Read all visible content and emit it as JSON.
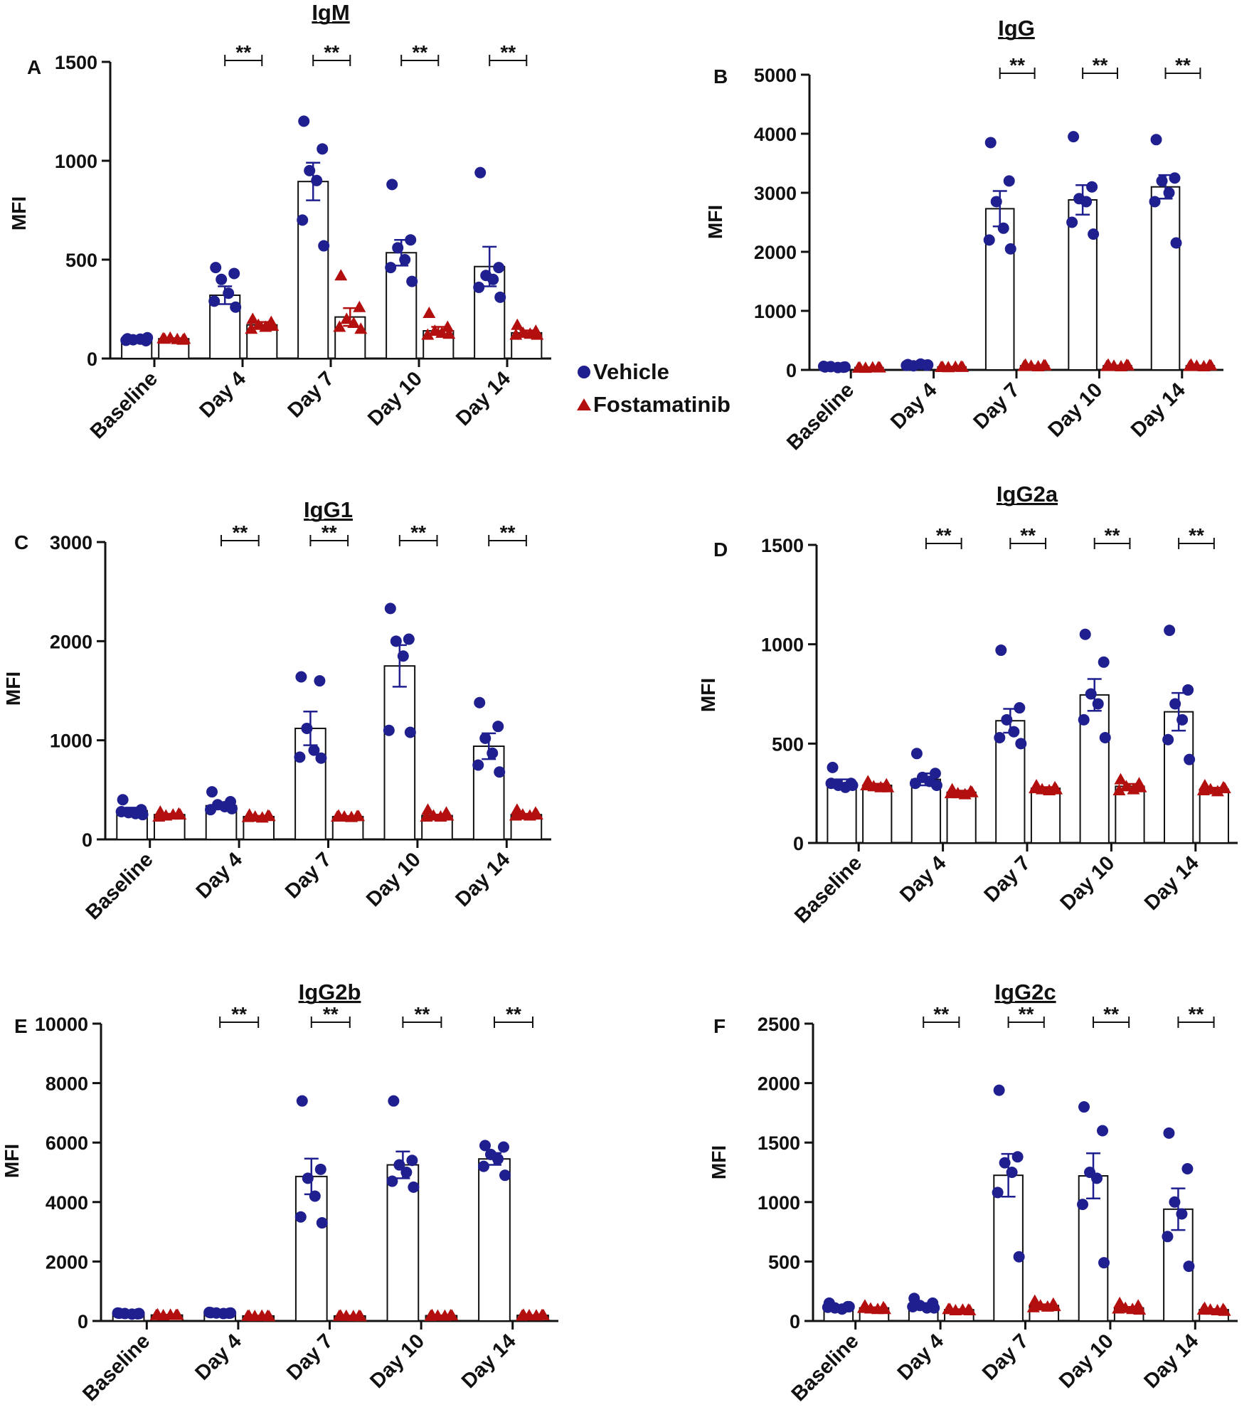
{
  "figure": {
    "legend": {
      "vehicle_label": "Vehicle",
      "fostamatinib_label": "Fostamatinib",
      "vehicle_color": "#1f1f8f",
      "fostamatinib_color": "#b30f0f"
    }
  },
  "chart_data": [
    {
      "panel": "A",
      "title": "IgM",
      "type": "bar",
      "ylabel": "MFI",
      "ylim": [
        0,
        1500
      ],
      "yticks": [
        0,
        500,
        1000,
        1500
      ],
      "categories": [
        "Baseline",
        "Day 4",
        "Day 7",
        "Day 10",
        "Day 14"
      ],
      "series": [
        {
          "name": "Vehicle",
          "means": [
            95,
            320,
            895,
            535,
            465
          ],
          "sem": [
            5,
            45,
            95,
            65,
            100
          ],
          "points": [
            [
              100,
              90,
              95,
              98,
              92,
              105
            ],
            [
              460,
              430,
              400,
              330,
              290,
              260
            ],
            [
              1200,
              1060,
              950,
              900,
              700,
              570
            ],
            [
              880,
              600,
              560,
              500,
              460,
              390
            ],
            [
              940,
              460,
              420,
              400,
              360,
              310
            ]
          ]
        },
        {
          "name": "Fostamatinib",
          "means": [
            100,
            170,
            210,
            140,
            130
          ],
          "sem": [
            3,
            15,
            45,
            20,
            12
          ],
          "points": [
            [
              100,
              95,
              105,
              98,
              102,
              100
            ],
            [
              200,
              185,
              170,
              160,
              150,
              165
            ],
            [
              420,
              260,
              200,
              180,
              160,
              150
            ],
            [
              230,
              160,
              140,
              130,
              120,
              125
            ],
            [
              170,
              140,
              130,
              125,
              120,
              120
            ]
          ]
        }
      ],
      "significance": [
        {
          "category": "Day 4",
          "label": "**"
        },
        {
          "category": "Day 7",
          "label": "**"
        },
        {
          "category": "Day 10",
          "label": "**"
        },
        {
          "category": "Day 14",
          "label": "**"
        }
      ]
    },
    {
      "panel": "B",
      "title": "IgG",
      "type": "bar",
      "ylabel": "MFI",
      "ylim": [
        0,
        5000
      ],
      "yticks": [
        0,
        1000,
        2000,
        3000,
        4000,
        5000
      ],
      "categories": [
        "Baseline",
        "Day 4",
        "Day 7",
        "Day 10",
        "Day 14"
      ],
      "series": [
        {
          "name": "Vehicle",
          "means": [
            50,
            80,
            2730,
            2880,
            3100
          ],
          "sem": [
            5,
            10,
            300,
            250,
            200
          ],
          "points": [
            [
              50,
              45,
              55,
              40,
              60,
              50
            ],
            [
              90,
              80,
              70,
              100,
              75,
              85
            ],
            [
              3850,
              3200,
              2850,
              2400,
              2200,
              2050
            ],
            [
              3950,
              3100,
              2900,
              2850,
              2500,
              2300
            ],
            [
              3900,
              3250,
              3200,
              3000,
              2850,
              2150
            ]
          ]
        },
        {
          "name": "Fostamatinib",
          "means": [
            40,
            50,
            70,
            70,
            70
          ],
          "sem": [
            3,
            4,
            6,
            6,
            6
          ],
          "points": [
            [
              40,
              45,
              35,
              42,
              38,
              40
            ],
            [
              50,
              55,
              45,
              52,
              48,
              50
            ],
            [
              90,
              80,
              70,
              60,
              65,
              75
            ],
            [
              90,
              85,
              70,
              60,
              65,
              75
            ],
            [
              90,
              80,
              70,
              60,
              65,
              75
            ]
          ]
        }
      ],
      "significance": [
        {
          "category": "Day 7",
          "label": "**"
        },
        {
          "category": "Day 10",
          "label": "**"
        },
        {
          "category": "Day 14",
          "label": "**"
        }
      ]
    },
    {
      "panel": "C",
      "title": "IgG1",
      "type": "bar",
      "ylabel": "MFI",
      "ylim": [
        0,
        3000
      ],
      "yticks": [
        0,
        1000,
        2000,
        3000
      ],
      "categories": [
        "Baseline",
        "Day 4",
        "Day 7",
        "Day 10",
        "Day 14"
      ],
      "series": [
        {
          "name": "Vehicle",
          "means": [
            290,
            340,
            1120,
            1750,
            940
          ],
          "sem": [
            30,
            35,
            170,
            210,
            130
          ],
          "points": [
            [
              400,
              300,
              270,
              260,
              280,
              250
            ],
            [
              480,
              380,
              350,
              330,
              300,
              310
            ],
            [
              1640,
              1600,
              1120,
              900,
              830,
              820
            ],
            [
              2330,
              2020,
              2000,
              1850,
              1100,
              1080
            ],
            [
              1380,
              1140,
              1020,
              870,
              750,
              680
            ]
          ]
        },
        {
          "name": "Fostamatinib",
          "means": [
            250,
            230,
            230,
            240,
            250
          ],
          "sem": [
            8,
            8,
            6,
            10,
            8
          ],
          "points": [
            [
              280,
              260,
              240,
              250,
              230,
              250
            ],
            [
              250,
              240,
              230,
              220,
              225,
              235
            ],
            [
              240,
              235,
              230,
              225,
              230,
              235
            ],
            [
              300,
              270,
              240,
              230,
              230,
              240
            ],
            [
              300,
              270,
              250,
              240,
              240,
              250
            ]
          ]
        }
      ],
      "significance": [
        {
          "category": "Day 4",
          "label": "**"
        },
        {
          "category": "Day 7",
          "label": "**"
        },
        {
          "category": "Day 10",
          "label": "**"
        },
        {
          "category": "Day 14",
          "label": "**"
        }
      ]
    },
    {
      "panel": "D",
      "title": "IgG2a",
      "type": "bar",
      "ylabel": "MFI",
      "ylim": [
        0,
        1500
      ],
      "yticks": [
        0,
        500,
        1000,
        1500
      ],
      "categories": [
        "Baseline",
        "Day 4",
        "Day 7",
        "Day 10",
        "Day 14"
      ],
      "series": [
        {
          "name": "Vehicle",
          "means": [
            300,
            320,
            615,
            745,
            660
          ],
          "sem": [
            20,
            30,
            60,
            80,
            95
          ],
          "points": [
            [
              380,
              300,
              290,
              280,
              300,
              290
            ],
            [
              450,
              350,
              330,
              310,
              300,
              290
            ],
            [
              970,
              680,
              620,
              560,
              530,
              500
            ],
            [
              1050,
              910,
              750,
              700,
              620,
              530
            ],
            [
              1070,
              770,
              700,
              620,
              520,
              420
            ]
          ]
        },
        {
          "name": "Fostamatinib",
          "means": [
            290,
            255,
            275,
            285,
            270
          ],
          "sem": [
            8,
            8,
            6,
            12,
            8
          ],
          "points": [
            [
              310,
              295,
              285,
              280,
              290,
              280
            ],
            [
              270,
              260,
              250,
              245,
              250,
              255
            ],
            [
              290,
              280,
              270,
              265,
              275,
              270
            ],
            [
              320,
              300,
              285,
              270,
              265,
              280
            ],
            [
              290,
              280,
              270,
              260,
              265,
              275
            ]
          ]
        }
      ],
      "significance": [
        {
          "category": "Day 4",
          "label": "**"
        },
        {
          "category": "Day 7",
          "label": "**"
        },
        {
          "category": "Day 10",
          "label": "**"
        },
        {
          "category": "Day 14",
          "label": "**"
        }
      ]
    },
    {
      "panel": "E",
      "title": "IgG2b",
      "type": "bar",
      "ylabel": "MFI",
      "ylim": [
        0,
        10000
      ],
      "yticks": [
        0,
        2000,
        4000,
        6000,
        8000,
        10000
      ],
      "categories": [
        "Baseline",
        "Day 4",
        "Day 7",
        "Day 10",
        "Day 14"
      ],
      "series": [
        {
          "name": "Vehicle",
          "means": [
            250,
            270,
            4860,
            5250,
            5450
          ],
          "sem": [
            15,
            15,
            600,
            450,
            200
          ],
          "points": [
            [
              260,
              240,
              250,
              230,
              270,
              250
            ],
            [
              280,
              260,
              270,
              250,
              290,
              270
            ],
            [
              7400,
              5100,
              4800,
              4200,
              3500,
              3300
            ],
            [
              7400,
              5400,
              5250,
              5000,
              4700,
              4500
            ],
            [
              5900,
              5850,
              5600,
              5450,
              5200,
              4900
            ]
          ]
        },
        {
          "name": "Fostamatinib",
          "means": [
            200,
            170,
            170,
            180,
            190
          ],
          "sem": [
            8,
            8,
            8,
            8,
            8
          ],
          "points": [
            [
              220,
              200,
              190,
              210,
              195,
              205
            ],
            [
              180,
              170,
              165,
              175,
              170,
              160
            ],
            [
              185,
              175,
              170,
              165,
              170,
              160
            ],
            [
              200,
              190,
              180,
              175,
              170,
              185
            ],
            [
              210,
              200,
              190,
              185,
              180,
              195
            ]
          ]
        }
      ],
      "significance": [
        {
          "category": "Day 4",
          "label": "**"
        },
        {
          "category": "Day 7",
          "label": "**"
        },
        {
          "category": "Day 10",
          "label": "**"
        },
        {
          "category": "Day 14",
          "label": "**"
        }
      ]
    },
    {
      "panel": "F",
      "title": "IgG2c",
      "type": "bar",
      "ylabel": "MFI",
      "ylim": [
        0,
        2500
      ],
      "yticks": [
        0,
        500,
        1000,
        1500,
        2000,
        2500
      ],
      "categories": [
        "Baseline",
        "Day 4",
        "Day 7",
        "Day 10",
        "Day 14"
      ],
      "series": [
        {
          "name": "Vehicle",
          "means": [
            120,
            135,
            1225,
            1220,
            940
          ],
          "sem": [
            10,
            15,
            180,
            190,
            175
          ],
          "points": [
            [
              150,
              120,
              110,
              100,
              115,
              120
            ],
            [
              190,
              150,
              130,
              110,
              120,
              110
            ],
            [
              1940,
              1380,
              1330,
              1250,
              1080,
              540
            ],
            [
              1800,
              1600,
              1250,
              1200,
              980,
              490
            ],
            [
              1580,
              1280,
              1000,
              900,
              710,
              460
            ]
          ]
        },
        {
          "name": "Fostamatinib",
          "means": [
            110,
            95,
            130,
            110,
            95
          ],
          "sem": [
            5,
            4,
            10,
            8,
            5
          ],
          "points": [
            [
              130,
              115,
              105,
              100,
              110,
              100
            ],
            [
              100,
              95,
              90,
              95,
              100,
              90
            ],
            [
              170,
              145,
              130,
              120,
              115,
              125
            ],
            [
              150,
              130,
              110,
              100,
              105,
              95
            ],
            [
              110,
              100,
              95,
              90,
              95,
              85
            ]
          ]
        }
      ],
      "significance": [
        {
          "category": "Day 4",
          "label": "**"
        },
        {
          "category": "Day 7",
          "label": "**"
        },
        {
          "category": "Day 10",
          "label": "**"
        },
        {
          "category": "Day 14",
          "label": "**"
        }
      ]
    }
  ]
}
